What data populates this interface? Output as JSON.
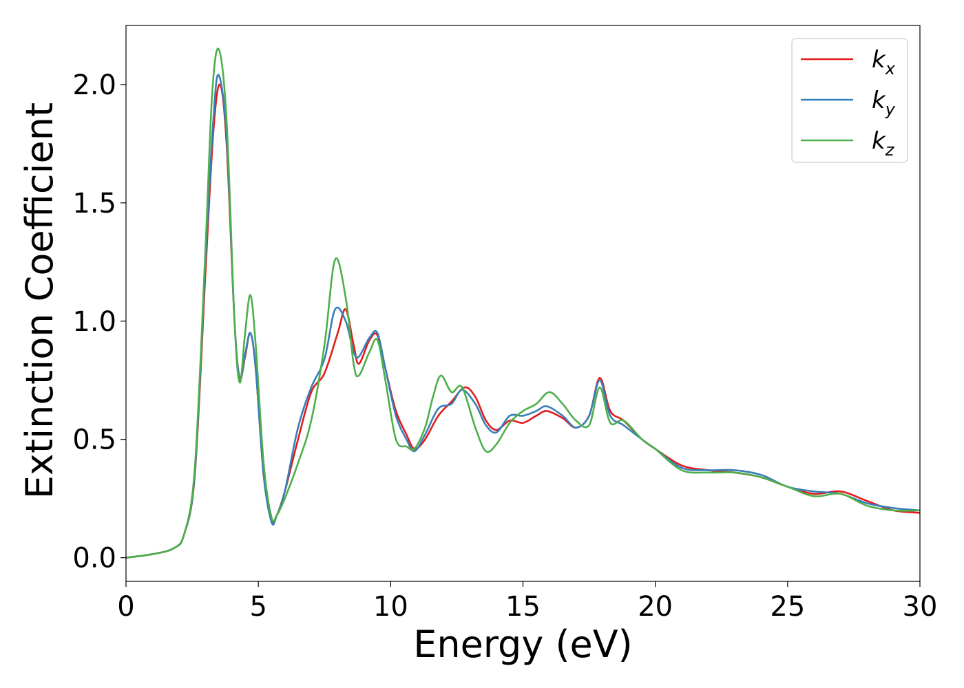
{
  "chart_data": {
    "type": "line",
    "xlabel": "Energy (eV)",
    "ylabel": "Extinction Coefficient",
    "xlim": [
      0,
      30
    ],
    "ylim": [
      -0.1,
      2.25
    ],
    "xticks": [
      0,
      5,
      10,
      15,
      20,
      25,
      30
    ],
    "xtick_labels": [
      "0",
      "5",
      "10",
      "15",
      "20",
      "25",
      "30"
    ],
    "yticks": [
      0.0,
      0.5,
      1.0,
      1.5,
      2.0
    ],
    "ytick_labels": [
      "0.0",
      "0.5",
      "1.0",
      "1.5",
      "2.0"
    ],
    "grid": false,
    "legend_position": "top-right",
    "series": [
      {
        "name": "k_x",
        "label_main": "k",
        "label_sub": "x",
        "color": "#e41a1c",
        "points": [
          [
            0,
            0
          ],
          [
            1,
            0.015
          ],
          [
            1.8,
            0.04
          ],
          [
            2.2,
            0.1
          ],
          [
            2.6,
            0.35
          ],
          [
            3.0,
            1.2
          ],
          [
            3.3,
            1.8
          ],
          [
            3.55,
            2.0
          ],
          [
            3.8,
            1.75
          ],
          [
            4.1,
            1.0
          ],
          [
            4.3,
            0.76
          ],
          [
            4.5,
            0.85
          ],
          [
            4.7,
            0.95
          ],
          [
            4.9,
            0.8
          ],
          [
            5.2,
            0.35
          ],
          [
            5.5,
            0.16
          ],
          [
            5.7,
            0.18
          ],
          [
            6.0,
            0.28
          ],
          [
            6.5,
            0.5
          ],
          [
            7.0,
            0.7
          ],
          [
            7.5,
            0.78
          ],
          [
            8.0,
            0.95
          ],
          [
            8.3,
            1.05
          ],
          [
            8.6,
            0.9
          ],
          [
            8.8,
            0.82
          ],
          [
            9.2,
            0.92
          ],
          [
            9.5,
            0.94
          ],
          [
            9.8,
            0.8
          ],
          [
            10.2,
            0.62
          ],
          [
            10.6,
            0.52
          ],
          [
            10.9,
            0.46
          ],
          [
            11.3,
            0.5
          ],
          [
            11.8,
            0.6
          ],
          [
            12.3,
            0.66
          ],
          [
            12.8,
            0.72
          ],
          [
            13.2,
            0.68
          ],
          [
            13.6,
            0.58
          ],
          [
            14.0,
            0.54
          ],
          [
            14.5,
            0.58
          ],
          [
            15.0,
            0.57
          ],
          [
            15.5,
            0.6
          ],
          [
            15.9,
            0.62
          ],
          [
            16.5,
            0.59
          ],
          [
            17.0,
            0.55
          ],
          [
            17.5,
            0.6
          ],
          [
            17.9,
            0.76
          ],
          [
            18.3,
            0.62
          ],
          [
            18.8,
            0.58
          ],
          [
            19.5,
            0.5
          ],
          [
            20.0,
            0.46
          ],
          [
            21.0,
            0.39
          ],
          [
            22.0,
            0.37
          ],
          [
            23.0,
            0.36
          ],
          [
            24.0,
            0.34
          ],
          [
            25.0,
            0.3
          ],
          [
            26.0,
            0.27
          ],
          [
            27.0,
            0.28
          ],
          [
            28.0,
            0.24
          ],
          [
            29.0,
            0.2
          ],
          [
            30.0,
            0.19
          ]
        ]
      },
      {
        "name": "k_y",
        "label_main": "k",
        "label_sub": "y",
        "color": "#377eb8",
        "points": [
          [
            0,
            0
          ],
          [
            1,
            0.015
          ],
          [
            1.8,
            0.04
          ],
          [
            2.2,
            0.1
          ],
          [
            2.6,
            0.36
          ],
          [
            3.0,
            1.25
          ],
          [
            3.3,
            1.85
          ],
          [
            3.5,
            2.04
          ],
          [
            3.8,
            1.78
          ],
          [
            4.1,
            1.0
          ],
          [
            4.3,
            0.76
          ],
          [
            4.5,
            0.86
          ],
          [
            4.7,
            0.95
          ],
          [
            4.9,
            0.8
          ],
          [
            5.2,
            0.35
          ],
          [
            5.5,
            0.15
          ],
          [
            5.7,
            0.18
          ],
          [
            6.0,
            0.28
          ],
          [
            6.5,
            0.55
          ],
          [
            7.0,
            0.72
          ],
          [
            7.5,
            0.84
          ],
          [
            7.9,
            1.05
          ],
          [
            8.3,
            1.0
          ],
          [
            8.6,
            0.87
          ],
          [
            8.8,
            0.85
          ],
          [
            9.2,
            0.93
          ],
          [
            9.5,
            0.95
          ],
          [
            9.8,
            0.8
          ],
          [
            10.2,
            0.6
          ],
          [
            10.6,
            0.5
          ],
          [
            10.9,
            0.45
          ],
          [
            11.3,
            0.52
          ],
          [
            11.8,
            0.63
          ],
          [
            12.3,
            0.65
          ],
          [
            12.7,
            0.71
          ],
          [
            13.2,
            0.65
          ],
          [
            13.6,
            0.56
          ],
          [
            14.0,
            0.53
          ],
          [
            14.5,
            0.6
          ],
          [
            15.0,
            0.6
          ],
          [
            15.5,
            0.62
          ],
          [
            15.9,
            0.64
          ],
          [
            16.5,
            0.6
          ],
          [
            17.0,
            0.55
          ],
          [
            17.5,
            0.6
          ],
          [
            17.9,
            0.75
          ],
          [
            18.3,
            0.6
          ],
          [
            18.8,
            0.56
          ],
          [
            19.5,
            0.5
          ],
          [
            20.0,
            0.46
          ],
          [
            21.0,
            0.38
          ],
          [
            22.0,
            0.37
          ],
          [
            23.0,
            0.37
          ],
          [
            24.0,
            0.35
          ],
          [
            25.0,
            0.3
          ],
          [
            26.0,
            0.28
          ],
          [
            27.0,
            0.27
          ],
          [
            28.0,
            0.23
          ],
          [
            29.0,
            0.21
          ],
          [
            30.0,
            0.2
          ]
        ]
      },
      {
        "name": "k_z",
        "label_main": "k",
        "label_sub": "z",
        "color": "#4daf4a",
        "points": [
          [
            0,
            0
          ],
          [
            1,
            0.015
          ],
          [
            1.8,
            0.04
          ],
          [
            2.2,
            0.1
          ],
          [
            2.6,
            0.38
          ],
          [
            3.0,
            1.3
          ],
          [
            3.25,
            1.95
          ],
          [
            3.5,
            2.15
          ],
          [
            3.8,
            1.85
          ],
          [
            4.1,
            1.0
          ],
          [
            4.3,
            0.74
          ],
          [
            4.5,
            0.95
          ],
          [
            4.7,
            1.11
          ],
          [
            4.9,
            0.9
          ],
          [
            5.2,
            0.4
          ],
          [
            5.5,
            0.17
          ],
          [
            5.7,
            0.18
          ],
          [
            6.0,
            0.25
          ],
          [
            6.5,
            0.4
          ],
          [
            7.0,
            0.58
          ],
          [
            7.5,
            0.9
          ],
          [
            7.9,
            1.26
          ],
          [
            8.3,
            1.1
          ],
          [
            8.6,
            0.82
          ],
          [
            8.8,
            0.77
          ],
          [
            9.2,
            0.87
          ],
          [
            9.5,
            0.92
          ],
          [
            9.8,
            0.75
          ],
          [
            10.2,
            0.5
          ],
          [
            10.6,
            0.47
          ],
          [
            10.9,
            0.46
          ],
          [
            11.3,
            0.55
          ],
          [
            11.6,
            0.68
          ],
          [
            11.9,
            0.77
          ],
          [
            12.3,
            0.7
          ],
          [
            12.7,
            0.72
          ],
          [
            13.2,
            0.55
          ],
          [
            13.6,
            0.45
          ],
          [
            14.0,
            0.48
          ],
          [
            14.5,
            0.57
          ],
          [
            15.0,
            0.62
          ],
          [
            15.5,
            0.65
          ],
          [
            16.0,
            0.7
          ],
          [
            16.5,
            0.65
          ],
          [
            17.0,
            0.58
          ],
          [
            17.5,
            0.56
          ],
          [
            17.9,
            0.72
          ],
          [
            18.3,
            0.57
          ],
          [
            18.8,
            0.58
          ],
          [
            19.5,
            0.5
          ],
          [
            20.0,
            0.46
          ],
          [
            21.0,
            0.37
          ],
          [
            22.0,
            0.36
          ],
          [
            23.0,
            0.36
          ],
          [
            24.0,
            0.34
          ],
          [
            25.0,
            0.3
          ],
          [
            26.0,
            0.26
          ],
          [
            27.0,
            0.27
          ],
          [
            28.0,
            0.22
          ],
          [
            29.0,
            0.2
          ],
          [
            30.0,
            0.2
          ]
        ]
      }
    ]
  }
}
